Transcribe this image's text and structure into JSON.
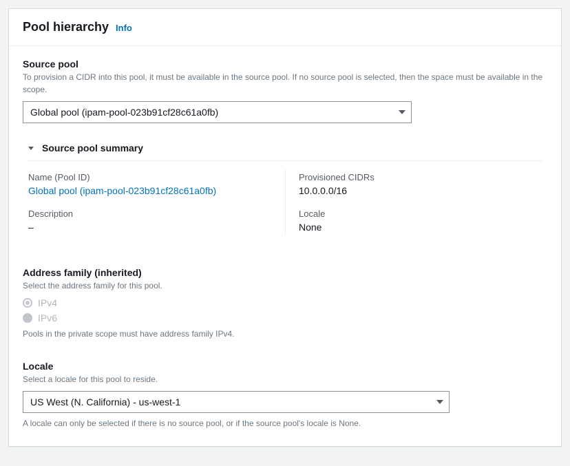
{
  "panel": {
    "title": "Pool hierarchy",
    "info": "Info"
  },
  "sourcePool": {
    "label": "Source pool",
    "description": "To provision a CIDR into this pool, it must be available in the source pool. If no source pool is selected, then the space must be available in the scope.",
    "selected": "Global pool (ipam-pool-023b91cf28c61a0fb)"
  },
  "summary": {
    "title": "Source pool summary",
    "nameLabel": "Name (Pool ID)",
    "nameValue": "Global pool (ipam-pool-023b91cf28c61a0fb)",
    "cidrsLabel": "Provisioned CIDRs",
    "cidrsValue": "10.0.0.0/16",
    "descLabel": "Description",
    "descValue": "–",
    "localeLabel": "Locale",
    "localeValue": "None"
  },
  "addressFamily": {
    "label": "Address family (inherited)",
    "description": "Select the address family for this pool.",
    "ipv4": "IPv4",
    "ipv6": "IPv6",
    "note": "Pools in the private scope must have address family IPv4."
  },
  "locale": {
    "label": "Locale",
    "description": "Select a locale for this pool to reside.",
    "selected": "US West (N. California) - us-west-1",
    "note": "A locale can only be selected if there is no source pool, or if the source pool's locale is None."
  }
}
